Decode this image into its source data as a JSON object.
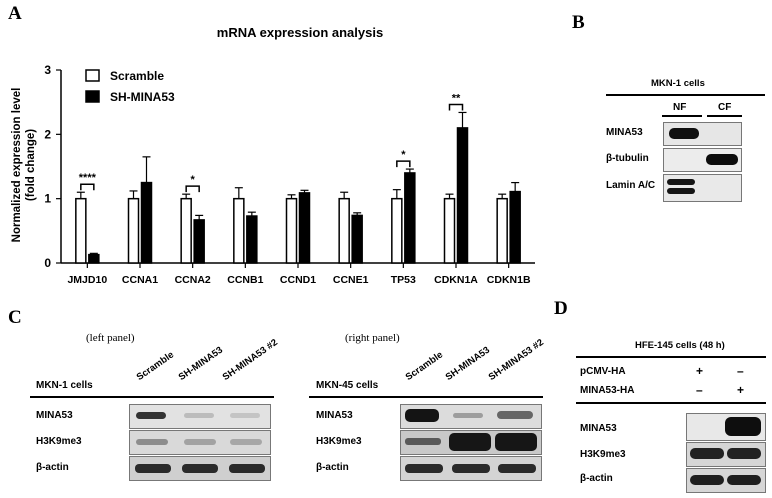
{
  "panels": {
    "a": "A",
    "b": "B",
    "c": "C",
    "d": "D"
  },
  "chart_data": {
    "type": "bar",
    "title": "mRNA expression analysis",
    "ylabel_line1": "Normalized expression level",
    "ylabel_line2": "(fold change)",
    "xlabel": "",
    "ylim": [
      0,
      3
    ],
    "yticks": [
      "0",
      "1",
      "2",
      "3"
    ],
    "categories": [
      "JMJD10",
      "CCNA1",
      "CCNA2",
      "CCNB1",
      "CCND1",
      "CCNE1",
      "TP53",
      "CDKN1A",
      "CDKN1B"
    ],
    "series": [
      {
        "name": "Scramble",
        "color": "#ffffff",
        "values": [
          1,
          1,
          1,
          1,
          1,
          1,
          1,
          1,
          1
        ],
        "errors": [
          0.1,
          0.12,
          0.07,
          0.17,
          0.06,
          0.1,
          0.14,
          0.07,
          0.07
        ]
      },
      {
        "name": "SH-MINA53",
        "color": "#000000",
        "values": [
          0.13,
          1.25,
          0.67,
          0.73,
          1.09,
          0.74,
          1.4,
          2.1,
          1.11
        ],
        "errors": [
          0.02,
          0.4,
          0.07,
          0.06,
          0.04,
          0.04,
          0.06,
          0.24,
          0.14
        ]
      }
    ],
    "significance": [
      {
        "category": "JMJD10",
        "label": "****"
      },
      {
        "category": "CCNA2",
        "label": "*"
      },
      {
        "category": "TP53",
        "label": "*"
      },
      {
        "category": "CDKN1A",
        "label": "**"
      }
    ],
    "legend_position": "top-left"
  },
  "panel_b": {
    "header": "MKN-1 cells",
    "columns": [
      "NF",
      "CF"
    ],
    "rows": [
      "MINA53",
      "β-tubulin",
      "Lamin A/C"
    ]
  },
  "panel_c": {
    "left": {
      "caption": "(left panel)",
      "cell_line": "MKN-1 cells",
      "lanes": [
        "Scramble",
        "SH-MINA53",
        "SH-MINA53 #2"
      ],
      "rows": [
        "MINA53",
        "H3K9me3",
        "β-actin"
      ]
    },
    "right": {
      "caption": "(right panel)",
      "cell_line": "MKN-45 cells",
      "lanes": [
        "Scramble",
        "SH-MINA53",
        "SH-MINA53 #2"
      ],
      "rows": [
        "MINA53",
        "H3K9me3",
        "β-actin"
      ]
    }
  },
  "panel_d": {
    "header": "HFE-145 cells (48 h)",
    "conditions": [
      {
        "label": "pCMV-HA",
        "signs": [
          "+",
          "–"
        ]
      },
      {
        "label": "MINA53-HA",
        "signs": [
          "–",
          "+"
        ]
      }
    ],
    "rows": [
      "MINA53",
      "H3K9me3",
      "β-actin"
    ]
  }
}
